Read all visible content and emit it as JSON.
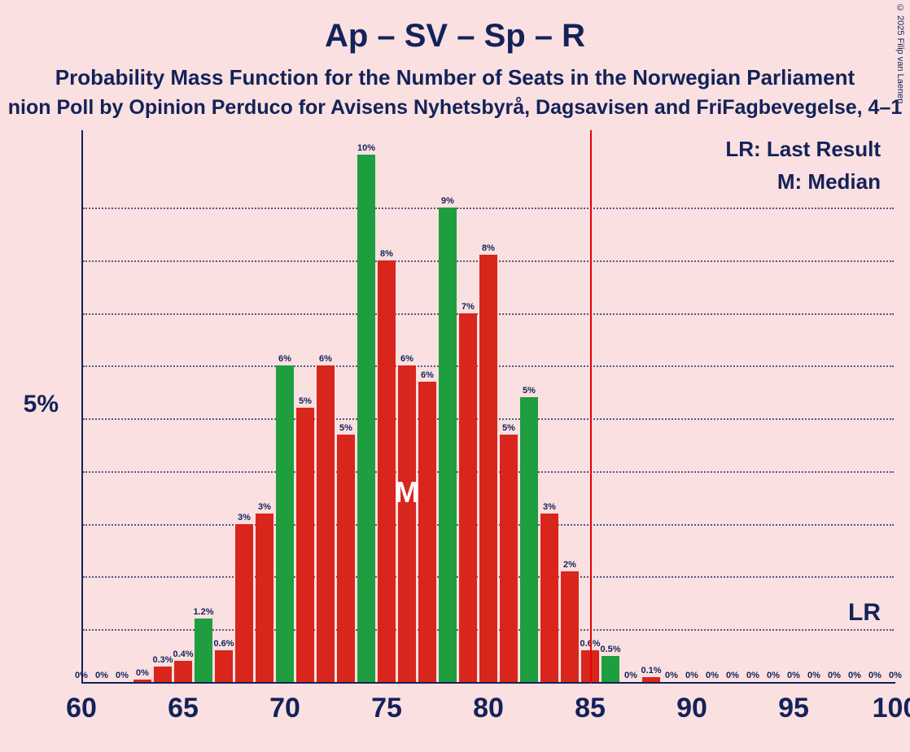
{
  "title": "Ap – SV – Sp – R",
  "subtitle": "Probability Mass Function for the Number of Seats in the Norwegian Parliament",
  "subtitle2": "nion Poll by Opinion Perduco for Avisens Nyhetsbyrå, Dagsavisen and FriFagbevegelse, 4–1",
  "copyright": "© 2025 Filip van Laenen",
  "legend": {
    "lr": "LR: Last Result",
    "m": "M: Median"
  },
  "lr_text": "LR",
  "m_text": "M",
  "colors": {
    "background": "#fae0e0",
    "text": "#13225a",
    "axis": "#13225a",
    "bar_red": "#d8261c",
    "bar_green": "#1e9e3e",
    "lr_line": "#e60000"
  },
  "chart": {
    "type": "bar",
    "x_min": 60,
    "x_max": 100,
    "y_max_pct": 10.5,
    "y_tick": {
      "value": 5,
      "label": "5%"
    },
    "x_ticks": [
      60,
      65,
      70,
      75,
      80,
      85,
      90,
      95,
      100
    ],
    "gridlines_pct": [
      1,
      2,
      3,
      4,
      5,
      6,
      7,
      8,
      9
    ],
    "lr_x": 85,
    "median_x": 76,
    "bar_width_units": 0.9,
    "bars": [
      {
        "x": 60,
        "v": 0,
        "label": "0%",
        "c": "red"
      },
      {
        "x": 61,
        "v": 0,
        "label": "0%",
        "c": "red"
      },
      {
        "x": 62,
        "v": 0,
        "label": "0%",
        "c": "red"
      },
      {
        "x": 63,
        "v": 0.05,
        "label": "0%",
        "c": "red"
      },
      {
        "x": 64,
        "v": 0.3,
        "label": "0.3%",
        "c": "red"
      },
      {
        "x": 65,
        "v": 0.4,
        "label": "0.4%",
        "c": "red"
      },
      {
        "x": 66,
        "v": 1.2,
        "label": "1.2%",
        "c": "green"
      },
      {
        "x": 67,
        "v": 0.6,
        "label": "0.6%",
        "c": "red"
      },
      {
        "x": 68,
        "v": 3,
        "label": "3%",
        "c": "red"
      },
      {
        "x": 69,
        "v": 3.2,
        "label": "3%",
        "c": "red"
      },
      {
        "x": 70,
        "v": 6,
        "label": "6%",
        "c": "green"
      },
      {
        "x": 71,
        "v": 5.2,
        "label": "5%",
        "c": "red"
      },
      {
        "x": 72,
        "v": 6,
        "label": "6%",
        "c": "red"
      },
      {
        "x": 73,
        "v": 4.7,
        "label": "5%",
        "c": "red"
      },
      {
        "x": 74,
        "v": 10,
        "label": "10%",
        "c": "green"
      },
      {
        "x": 75,
        "v": 8,
        "label": "8%",
        "c": "red"
      },
      {
        "x": 76,
        "v": 6,
        "label": "6%",
        "c": "red"
      },
      {
        "x": 77,
        "v": 5.7,
        "label": "6%",
        "c": "red"
      },
      {
        "x": 78,
        "v": 9,
        "label": "9%",
        "c": "green"
      },
      {
        "x": 79,
        "v": 7,
        "label": "7%",
        "c": "red"
      },
      {
        "x": 80,
        "v": 8.1,
        "label": "8%",
        "c": "red"
      },
      {
        "x": 81,
        "v": 4.7,
        "label": "5%",
        "c": "red"
      },
      {
        "x": 82,
        "v": 5.4,
        "label": "5%",
        "c": "green"
      },
      {
        "x": 83,
        "v": 3.2,
        "label": "3%",
        "c": "red"
      },
      {
        "x": 84,
        "v": 2.1,
        "label": "2%",
        "c": "red"
      },
      {
        "x": 85,
        "v": 0.6,
        "label": "0.6%",
        "c": "red"
      },
      {
        "x": 86,
        "v": 0.5,
        "label": "0.5%",
        "c": "green"
      },
      {
        "x": 87,
        "v": 0,
        "label": "0%",
        "c": "red"
      },
      {
        "x": 88,
        "v": 0.1,
        "label": "0.1%",
        "c": "red"
      },
      {
        "x": 89,
        "v": 0,
        "label": "0%",
        "c": "red"
      },
      {
        "x": 90,
        "v": 0,
        "label": "0%",
        "c": "red"
      },
      {
        "x": 91,
        "v": 0,
        "label": "0%",
        "c": "red"
      },
      {
        "x": 92,
        "v": 0,
        "label": "0%",
        "c": "red"
      },
      {
        "x": 93,
        "v": 0,
        "label": "0%",
        "c": "red"
      },
      {
        "x": 94,
        "v": 0,
        "label": "0%",
        "c": "red"
      },
      {
        "x": 95,
        "v": 0,
        "label": "0%",
        "c": "red"
      },
      {
        "x": 96,
        "v": 0,
        "label": "0%",
        "c": "red"
      },
      {
        "x": 97,
        "v": 0,
        "label": "0%",
        "c": "red"
      },
      {
        "x": 98,
        "v": 0,
        "label": "0%",
        "c": "red"
      },
      {
        "x": 99,
        "v": 0,
        "label": "0%",
        "c": "red"
      },
      {
        "x": 100,
        "v": 0,
        "label": "0%",
        "c": "red"
      }
    ]
  }
}
